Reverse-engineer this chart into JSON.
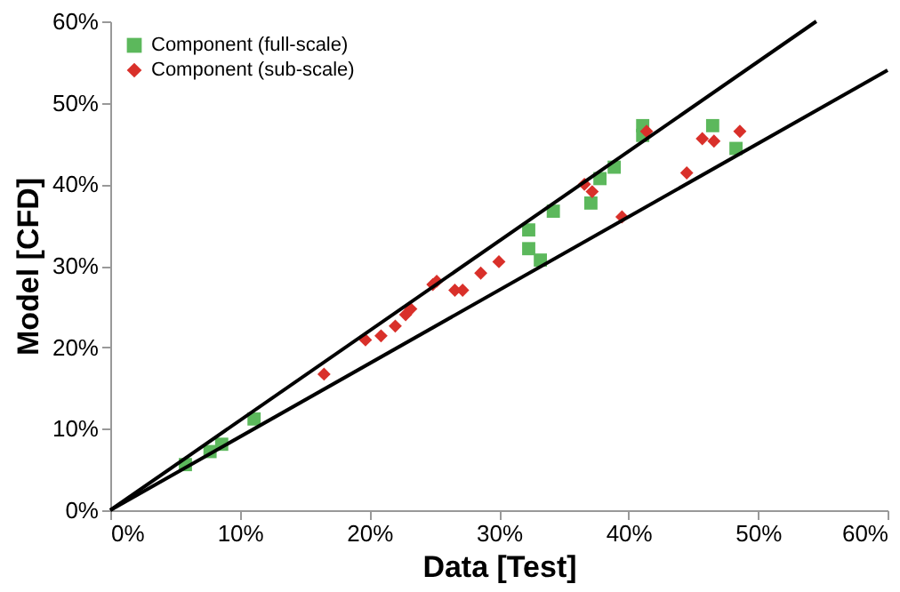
{
  "chart_data": {
    "type": "scatter",
    "xlabel": "Data [Test]",
    "ylabel": "Model [CFD]",
    "xlim": [
      0,
      60
    ],
    "ylim": [
      0,
      60
    ],
    "xticks": [
      {
        "value": 0,
        "label": "0%"
      },
      {
        "value": 10,
        "label": "10%"
      },
      {
        "value": 20,
        "label": "20%"
      },
      {
        "value": 30,
        "label": "30%"
      },
      {
        "value": 40,
        "label": "40%"
      },
      {
        "value": 50,
        "label": "50%"
      },
      {
        "value": 60,
        "label": "60%"
      }
    ],
    "yticks": [
      {
        "value": 0,
        "label": "0%"
      },
      {
        "value": 10,
        "label": "10%"
      },
      {
        "value": 20,
        "label": "20%"
      },
      {
        "value": 30,
        "label": "30%"
      },
      {
        "value": 40,
        "label": "40%"
      },
      {
        "value": 50,
        "label": "50%"
      },
      {
        "value": 60,
        "label": "60%"
      }
    ],
    "legend": "top left",
    "series": [
      {
        "name": "Component (full-scale)",
        "marker": "square",
        "color": "#5cb85c",
        "x": [
          5.8,
          7.7,
          8.6,
          11.1,
          32.3,
          32.3,
          33.2,
          34.2,
          37.1,
          37.8,
          38.9,
          41.1,
          41.1,
          46.5,
          48.3
        ],
        "values": [
          5.6,
          7.2,
          8.1,
          11.2,
          34.4,
          32.1,
          30.7,
          36.7,
          37.7,
          40.7,
          42.1,
          47.2,
          46.0,
          47.2,
          44.4
        ]
      },
      {
        "name": "Component (sub-scale)",
        "marker": "diamond",
        "color": "#d9302a",
        "x": [
          16.5,
          19.7,
          20.9,
          22.0,
          22.8,
          23.2,
          24.9,
          25.2,
          26.6,
          27.2,
          28.6,
          30.0,
          36.6,
          37.2,
          39.5,
          41.4,
          44.5,
          45.7,
          46.6,
          48.6
        ],
        "values": [
          16.7,
          20.9,
          21.4,
          22.6,
          24.0,
          24.7,
          27.7,
          28.1,
          27.0,
          27.0,
          29.1,
          30.5,
          40.0,
          39.1,
          36.0,
          46.5,
          41.4,
          45.6,
          45.3,
          46.5
        ]
      },
      {
        "type": "line",
        "color": "#000000",
        "line_style": "solid",
        "x": [
          0,
          54.5
        ],
        "values": [
          0,
          60
        ]
      },
      {
        "type": "line",
        "color": "#000000",
        "line_style": "solid",
        "x": [
          0,
          60
        ],
        "values": [
          0,
          54
        ]
      }
    ]
  }
}
